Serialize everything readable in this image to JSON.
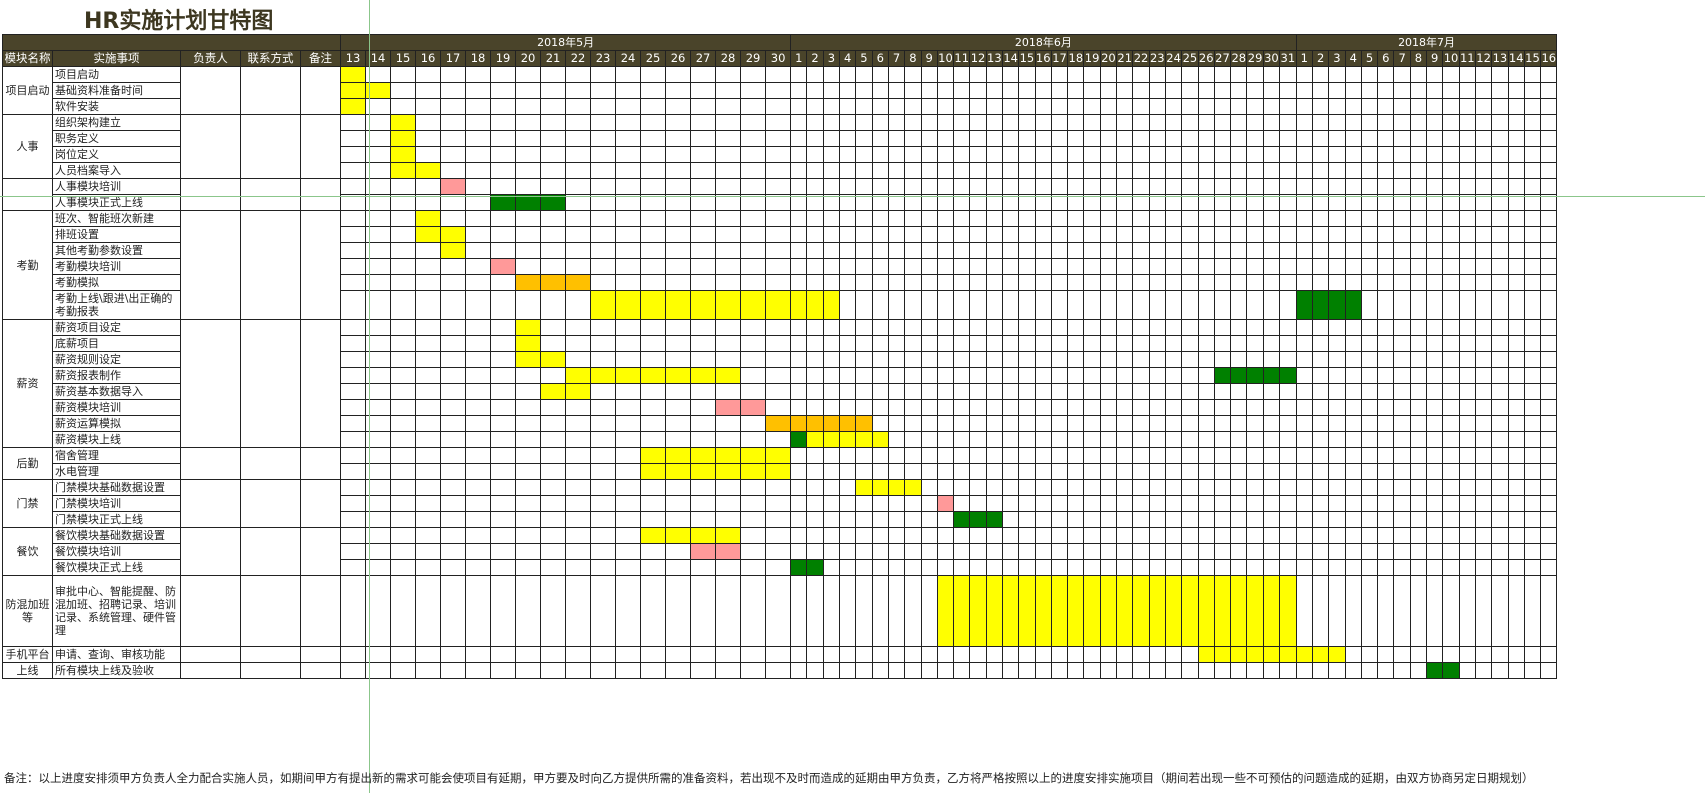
{
  "title": "HR实施计划甘特图",
  "header": {
    "module": "模块名称",
    "task": "实施事项",
    "owner": "负责人",
    "contact": "联系方式",
    "remark": "备注"
  },
  "months": [
    {
      "label": "2018年5月",
      "days": [
        13,
        14,
        15,
        16,
        17,
        18,
        19,
        20,
        21,
        22,
        23,
        24,
        25,
        26,
        27,
        28,
        29,
        30
      ]
    },
    {
      "label": "2018年6月",
      "days": [
        1,
        2,
        3,
        4,
        5,
        6,
        7,
        8,
        9,
        10,
        11,
        12,
        13,
        14,
        15,
        16,
        17,
        18,
        19,
        20,
        21,
        22,
        23,
        24,
        25,
        26,
        27,
        28,
        29,
        30,
        31
      ]
    },
    {
      "label": "2018年7月",
      "days": [
        1,
        2,
        3,
        4,
        5,
        6,
        7,
        8,
        9,
        10,
        11,
        12,
        13,
        14,
        15,
        16
      ]
    }
  ],
  "colors": {
    "y": "#ffff00",
    "o": "#ffc000",
    "p": "#ff9999",
    "g": "#008000"
  },
  "modules": [
    {
      "name": "项目启动",
      "rows": [
        {
          "task": "项目启动",
          "h": 16,
          "bars": [
            [
              0,
              0,
              "y"
            ]
          ]
        },
        {
          "task": "基础资料准备时间",
          "h": 16,
          "bars": [
            [
              0,
              1,
              "y"
            ]
          ]
        },
        {
          "task": "软件安装",
          "h": 16,
          "bars": [
            [
              0,
              0,
              "y"
            ]
          ]
        }
      ]
    },
    {
      "name": "人事",
      "rows": [
        {
          "task": "组织架构建立",
          "h": 16,
          "bars": [
            [
              2,
              2,
              "y"
            ]
          ]
        },
        {
          "task": "职务定义",
          "h": 16,
          "bars": [
            [
              2,
              2,
              "y"
            ]
          ]
        },
        {
          "task": "岗位定义",
          "h": 16,
          "bars": [
            [
              2,
              2,
              "y"
            ]
          ]
        },
        {
          "task": "人员档案导入",
          "h": 16,
          "bars": [
            [
              2,
              3,
              "y"
            ]
          ]
        }
      ]
    },
    {
      "name": "",
      "rows": [
        {
          "task": "人事模块培训",
          "h": 16,
          "bars": [
            [
              4,
              4,
              "p"
            ]
          ]
        },
        {
          "task": "人事模块正式上线",
          "h": 16,
          "bars": [
            [
              6,
              8,
              "g"
            ]
          ]
        }
      ]
    },
    {
      "name": "考勤",
      "rows": [
        {
          "task": "班次、智能班次新建",
          "h": 16,
          "bars": [
            [
              3,
              3,
              "y"
            ]
          ]
        },
        {
          "task": "排班设置",
          "h": 16,
          "bars": [
            [
              3,
              4,
              "y"
            ]
          ]
        },
        {
          "task": "其他考勤参数设置",
          "h": 16,
          "bars": [
            [
              4,
              4,
              "y"
            ]
          ]
        },
        {
          "task": "考勤模块培训",
          "h": 16,
          "bars": [
            [
              6,
              6,
              "p"
            ]
          ]
        },
        {
          "task": "考勤模拟",
          "h": 16,
          "bars": [
            [
              7,
              9,
              "o"
            ]
          ]
        },
        {
          "task": "考勤上线\\跟进\\出正确的考勤报表",
          "h": 29,
          "small": true,
          "bars": [
            [
              10,
              20,
              "y"
            ],
            [
              49,
              52,
              "g"
            ]
          ]
        }
      ]
    },
    {
      "name": "薪资",
      "rows": [
        {
          "task": "薪资项目设定",
          "h": 16,
          "bars": [
            [
              7,
              7,
              "y"
            ]
          ]
        },
        {
          "task": "底薪项目",
          "h": 16,
          "bars": [
            [
              7,
              7,
              "y"
            ]
          ]
        },
        {
          "task": "薪资规则设定",
          "h": 16,
          "bars": [
            [
              7,
              8,
              "y"
            ]
          ]
        },
        {
          "task": "薪资报表制作",
          "h": 16,
          "bars": [
            [
              9,
              15,
              "y"
            ],
            [
              44,
              47,
              "g"
            ],
            [
              48,
              48,
              "g"
            ]
          ]
        },
        {
          "task": "薪资基本数据导入",
          "h": 16,
          "bars": [
            [
              8,
              9,
              "y"
            ]
          ]
        },
        {
          "task": "薪资模块培训",
          "h": 16,
          "bars": [
            [
              15,
              16,
              "p"
            ]
          ]
        },
        {
          "task": "薪资运算模拟",
          "h": 16,
          "bars": [
            [
              17,
              22,
              "o"
            ]
          ]
        },
        {
          "task": "薪资模块上线",
          "h": 16,
          "bars": [
            [
              18,
              18,
              "g"
            ],
            [
              19,
              23,
              "y"
            ]
          ]
        }
      ]
    },
    {
      "name": "后勤",
      "rows": [
        {
          "task": "宿舍管理",
          "h": 16,
          "bars": [
            [
              12,
              17,
              "y"
            ]
          ]
        },
        {
          "task": "水电管理",
          "h": 16,
          "bars": [
            [
              12,
              17,
              "y"
            ]
          ]
        }
      ]
    },
    {
      "name": "门禁",
      "rows": [
        {
          "task": "门禁模块基础数据设置",
          "h": 16,
          "bars": [
            [
              22,
              25,
              "y"
            ]
          ]
        },
        {
          "task": "门禁模块培训",
          "h": 16,
          "bars": [
            [
              27,
              27,
              "p"
            ]
          ]
        },
        {
          "task": "门禁模块正式上线",
          "h": 16,
          "bars": [
            [
              28,
              30,
              "g"
            ]
          ]
        }
      ]
    },
    {
      "name": "餐饮",
      "rows": [
        {
          "task": "餐饮模块基础数据设置",
          "h": 16,
          "bars": [
            [
              12,
              15,
              "y"
            ]
          ]
        },
        {
          "task": "餐饮模块培训",
          "h": 16,
          "bars": [
            [
              14,
              15,
              "p"
            ]
          ]
        },
        {
          "task": "餐饮模块正式上线",
          "h": 16,
          "bars": [
            [
              18,
              19,
              "g"
            ]
          ]
        }
      ]
    },
    {
      "name": "防混加班等",
      "rows": [
        {
          "task": "审批中心、智能提醒、防混加班、招聘记录、培训记录、系统管理、硬件管理",
          "h": 71,
          "wrap": true,
          "bars": [
            [
              27,
              48,
              "y"
            ]
          ]
        }
      ]
    },
    {
      "name": "手机平台",
      "rows": [
        {
          "task": "申请、查询、审核功能",
          "h": 16,
          "bars": [
            [
              43,
              51,
              "y"
            ]
          ]
        }
      ]
    },
    {
      "name": "上线",
      "rows": [
        {
          "task": "所有模块上线及验收",
          "h": 16,
          "bars": [
            [
              57,
              58,
              "g"
            ]
          ]
        }
      ]
    }
  ],
  "note": "备注：以上进度安排须甲方负责人全力配合实施人员，如期间甲方有提出新的需求可能会使项目有延期，甲方要及时向乙方提供所需的准备资料，若出现不及时而造成的延期由甲方负责，乙方将严格按照以上的进度安排实施项目（期间若出现一些不可预估的问题造成的延期，由双方协商另定日期规划）"
}
